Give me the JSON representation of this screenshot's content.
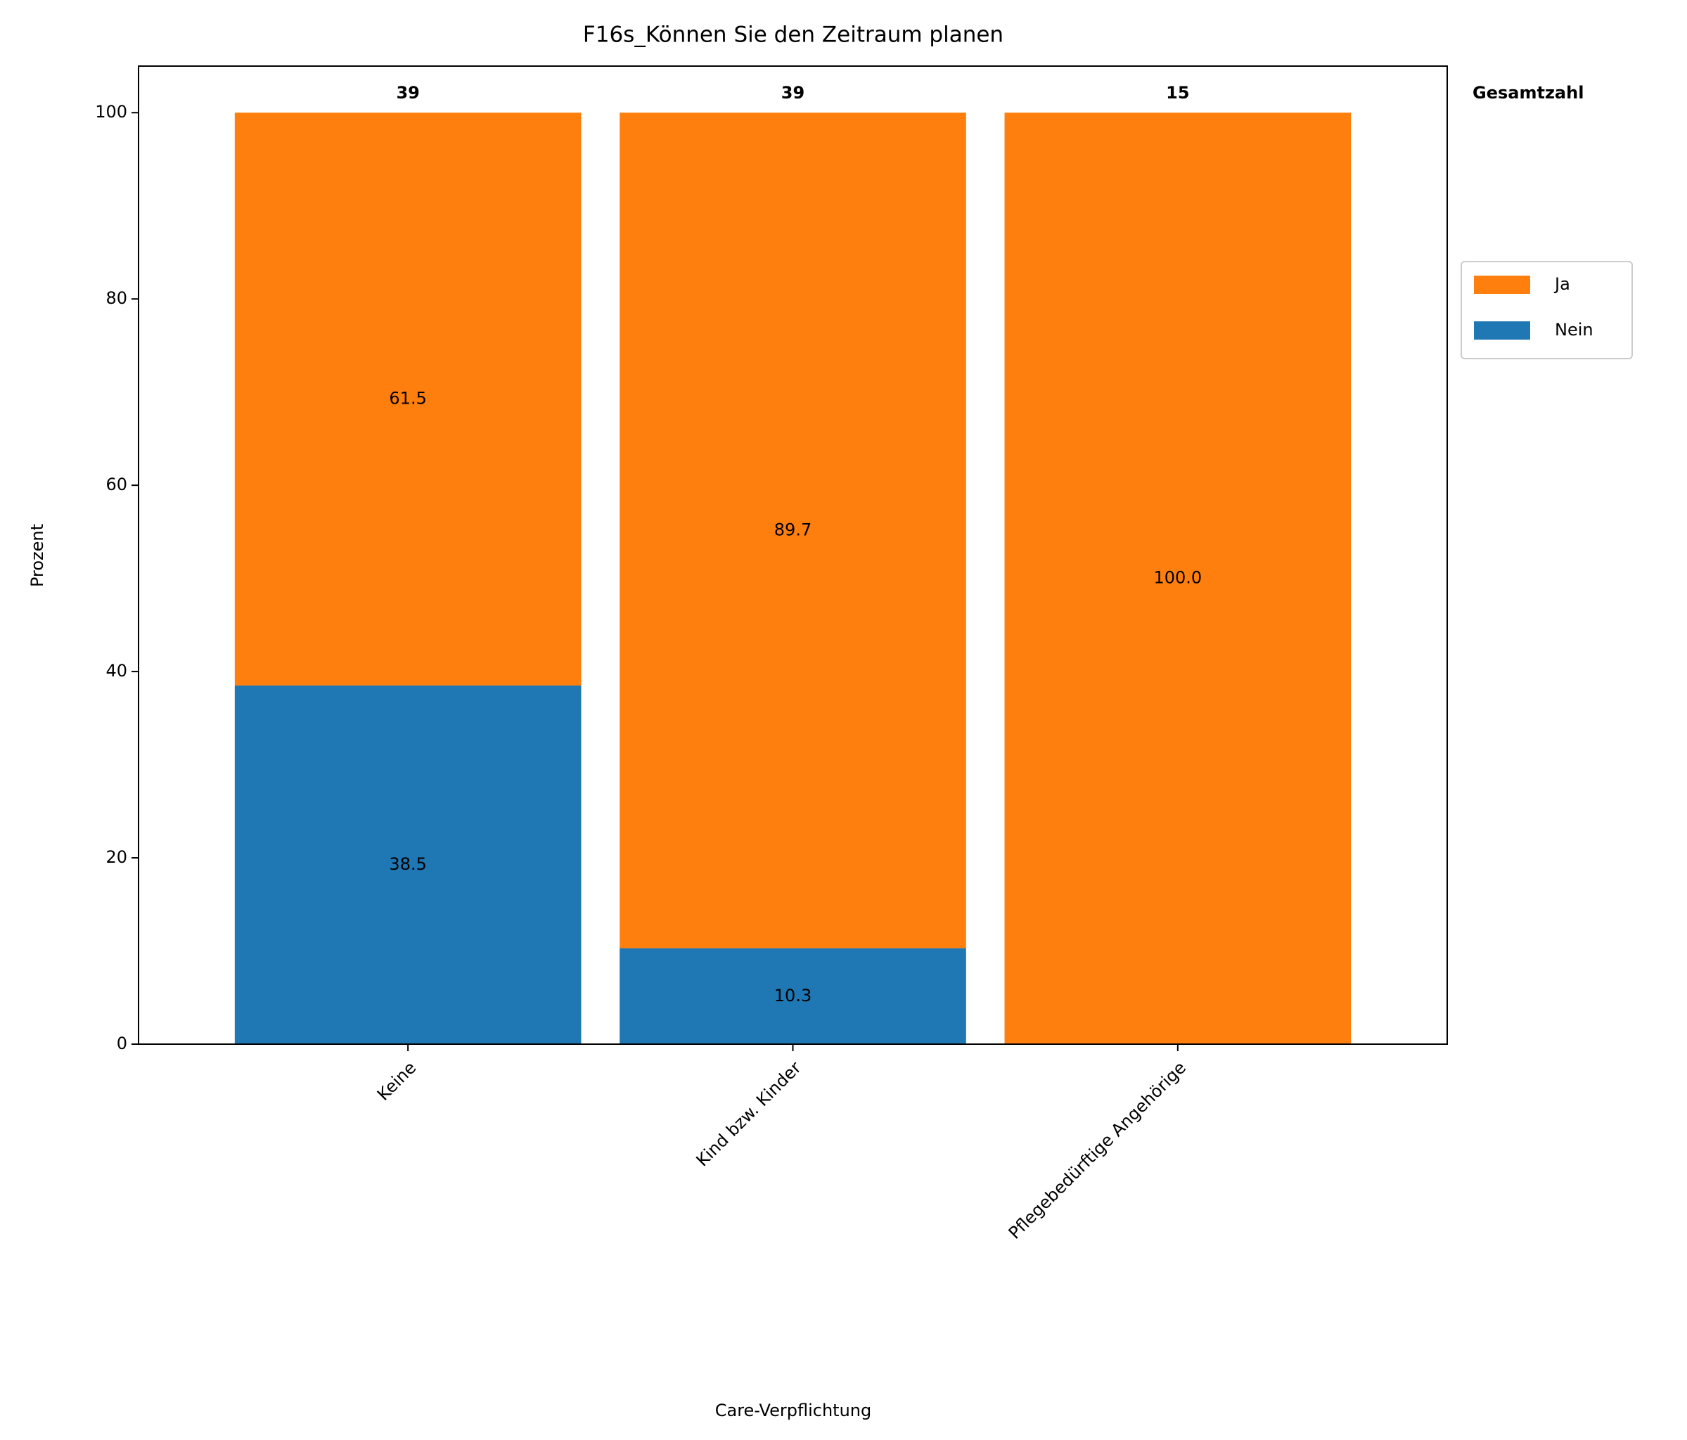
{
  "chart_data": {
    "type": "stacked-bar",
    "title": "F16s_Können Sie den Zeitraum planen",
    "x_label": "Care-Verpflichtung",
    "y_label": "Prozent",
    "categories": [
      "Keine",
      "Kind bzw. Kinder",
      "Pflegebedürftige Angehörige"
    ],
    "series": [
      {
        "name": "Nein",
        "color": "#1f77b4",
        "values": [
          38.5,
          10.3,
          null
        ]
      },
      {
        "name": "Ja",
        "color": "#ff7f0e",
        "values": [
          61.5,
          89.7,
          100.0
        ],
        "value_labels": [
          "61.5",
          "89.7",
          "100.0"
        ]
      }
    ],
    "totals": {
      "label": "Gesamtzahl",
      "values": [
        39,
        39,
        15
      ]
    },
    "ylim": [
      0,
      105
    ],
    "yticks": [
      0,
      20,
      40,
      60,
      80,
      100
    ],
    "grid": false
  }
}
